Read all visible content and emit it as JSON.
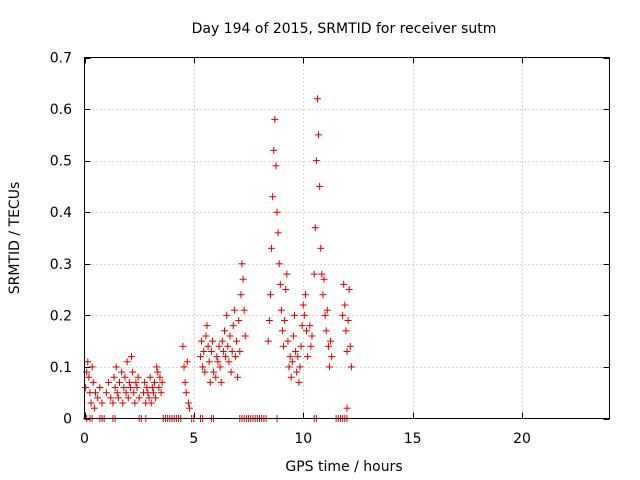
{
  "chart_data": {
    "type": "scatter",
    "title": "Day 194 of 2015, SRMTID for receiver sutm",
    "xlabel": "GPS time / hours",
    "ylabel": "SRMTID / TECUs",
    "xlim": [
      0,
      24
    ],
    "ylim": [
      0,
      0.7
    ],
    "x_ticks": [
      0,
      5,
      10,
      15,
      20
    ],
    "x_tick_labels": [
      "0",
      "5",
      "10",
      "15",
      "20"
    ],
    "y_ticks": [
      0,
      0.1,
      0.2,
      0.3,
      0.4,
      0.5,
      0.6,
      0.7
    ],
    "y_tick_labels": [
      "0",
      "0.1",
      "0.2",
      "0.3",
      "0.4",
      "0.5",
      "0.6",
      "0.7"
    ],
    "grid": true,
    "marker": "plus",
    "color": "#dd0000",
    "series": [
      {
        "name": "SRMTID",
        "points": [
          [
            0.05,
            0.06
          ],
          [
            0.1,
            0.09
          ],
          [
            0.15,
            0.11
          ],
          [
            0.2,
            0.08
          ],
          [
            0.25,
            0.05
          ],
          [
            0.3,
            0.03
          ],
          [
            0.35,
            0.1
          ],
          [
            0.4,
            0.07
          ],
          [
            0.45,
            0.02
          ],
          [
            0.5,
            0.05
          ],
          [
            0.6,
            0.04
          ],
          [
            0.7,
            0.06
          ],
          [
            0.8,
            0.03
          ],
          [
            1.0,
            0.05
          ],
          [
            1.1,
            0.07
          ],
          [
            1.2,
            0.04
          ],
          [
            1.3,
            0.03
          ],
          [
            1.35,
            0.08
          ],
          [
            1.4,
            0.06
          ],
          [
            1.45,
            0.1
          ],
          [
            1.5,
            0.05
          ],
          [
            1.55,
            0.04
          ],
          [
            1.6,
            0.07
          ],
          [
            1.7,
            0.09
          ],
          [
            1.75,
            0.03
          ],
          [
            1.8,
            0.06
          ],
          [
            1.85,
            0.08
          ],
          [
            1.9,
            0.05
          ],
          [
            1.95,
            0.11
          ],
          [
            2.0,
            0.04
          ],
          [
            2.05,
            0.07
          ],
          [
            2.1,
            0.06
          ],
          [
            2.15,
            0.12
          ],
          [
            2.2,
            0.09
          ],
          [
            2.25,
            0.05
          ],
          [
            2.3,
            0.03
          ],
          [
            2.35,
            0.07
          ],
          [
            2.4,
            0.06
          ],
          [
            2.45,
            0.08
          ],
          [
            2.5,
            0.04
          ],
          [
            2.7,
            0.05
          ],
          [
            2.75,
            0.07
          ],
          [
            2.8,
            0.03
          ],
          [
            2.85,
            0.06
          ],
          [
            2.9,
            0.05
          ],
          [
            2.95,
            0.04
          ],
          [
            3.0,
            0.08
          ],
          [
            3.05,
            0.03
          ],
          [
            3.1,
            0.06
          ],
          [
            3.15,
            0.05
          ],
          [
            3.2,
            0.07
          ],
          [
            3.25,
            0.04
          ],
          [
            3.3,
            0.1
          ],
          [
            3.35,
            0.09
          ],
          [
            3.4,
            0.06
          ],
          [
            3.45,
            0.08
          ],
          [
            3.5,
            0.05
          ],
          [
            3.55,
            0.07
          ],
          [
            4.5,
            0.14
          ],
          [
            4.55,
            0.1
          ],
          [
            4.6,
            0.07
          ],
          [
            4.65,
            0.05
          ],
          [
            4.7,
            0.11
          ],
          [
            4.75,
            0.03
          ],
          [
            4.8,
            0.02
          ],
          [
            5.3,
            0.12
          ],
          [
            5.35,
            0.15
          ],
          [
            5.4,
            0.1
          ],
          [
            5.45,
            0.13
          ],
          [
            5.5,
            0.09
          ],
          [
            5.55,
            0.16
          ],
          [
            5.6,
            0.18
          ],
          [
            5.65,
            0.14
          ],
          [
            5.7,
            0.11
          ],
          [
            5.75,
            0.07
          ],
          [
            5.8,
            0.13
          ],
          [
            5.85,
            0.15
          ],
          [
            5.9,
            0.09
          ],
          [
            6.0,
            0.08
          ],
          [
            6.05,
            0.12
          ],
          [
            6.1,
            0.11
          ],
          [
            6.15,
            0.14
          ],
          [
            6.2,
            0.1
          ],
          [
            6.25,
            0.07
          ],
          [
            6.3,
            0.15
          ],
          [
            6.35,
            0.13
          ],
          [
            6.4,
            0.17
          ],
          [
            6.45,
            0.12
          ],
          [
            6.5,
            0.2
          ],
          [
            6.55,
            0.14
          ],
          [
            6.6,
            0.11
          ],
          [
            6.65,
            0.16
          ],
          [
            6.7,
            0.09
          ],
          [
            6.75,
            0.13
          ],
          [
            6.8,
            0.18
          ],
          [
            6.85,
            0.21
          ],
          [
            6.9,
            0.12
          ],
          [
            6.95,
            0.15
          ],
          [
            7.0,
            0.08
          ],
          [
            7.05,
            0.19
          ],
          [
            7.1,
            0.13
          ],
          [
            7.15,
            0.24
          ],
          [
            7.2,
            0.3
          ],
          [
            7.25,
            0.27
          ],
          [
            7.3,
            0.21
          ],
          [
            7.35,
            0.16
          ],
          [
            8.4,
            0.15
          ],
          [
            8.45,
            0.19
          ],
          [
            8.5,
            0.24
          ],
          [
            8.55,
            0.33
          ],
          [
            8.6,
            0.43
          ],
          [
            8.65,
            0.52
          ],
          [
            8.7,
            0.58
          ],
          [
            8.75,
            0.49
          ],
          [
            8.8,
            0.4
          ],
          [
            8.85,
            0.36
          ],
          [
            8.9,
            0.3
          ],
          [
            8.95,
            0.26
          ],
          [
            9.0,
            0.21
          ],
          [
            9.05,
            0.17
          ],
          [
            9.1,
            0.14
          ],
          [
            9.15,
            0.19
          ],
          [
            9.2,
            0.25
          ],
          [
            9.25,
            0.28
          ],
          [
            9.3,
            0.15
          ],
          [
            9.35,
            0.1
          ],
          [
            9.4,
            0.12
          ],
          [
            9.45,
            0.08
          ],
          [
            9.5,
            0.11
          ],
          [
            9.55,
            0.16
          ],
          [
            9.6,
            0.2
          ],
          [
            9.65,
            0.13
          ],
          [
            9.7,
            0.09
          ],
          [
            9.75,
            0.12
          ],
          [
            9.8,
            0.07
          ],
          [
            9.85,
            0.1
          ],
          [
            9.9,
            0.14
          ],
          [
            9.95,
            0.18
          ],
          [
            10.0,
            0.22
          ],
          [
            10.05,
            0.2
          ],
          [
            10.1,
            0.24
          ],
          [
            10.15,
            0.17
          ],
          [
            10.2,
            0.12
          ],
          [
            10.3,
            0.18
          ],
          [
            10.35,
            0.14
          ],
          [
            10.4,
            0.16
          ],
          [
            10.5,
            0.28
          ],
          [
            10.55,
            0.37
          ],
          [
            10.6,
            0.5
          ],
          [
            10.65,
            0.62
          ],
          [
            10.7,
            0.55
          ],
          [
            10.75,
            0.45
          ],
          [
            10.8,
            0.33
          ],
          [
            10.85,
            0.28
          ],
          [
            10.9,
            0.24
          ],
          [
            10.95,
            0.27
          ],
          [
            11.0,
            0.2
          ],
          [
            11.05,
            0.17
          ],
          [
            11.1,
            0.21
          ],
          [
            11.15,
            0.14
          ],
          [
            11.2,
            0.1
          ],
          [
            11.25,
            0.15
          ],
          [
            11.3,
            0.12
          ],
          [
            11.8,
            0.2
          ],
          [
            11.85,
            0.26
          ],
          [
            11.9,
            0.22
          ],
          [
            11.95,
            0.17
          ],
          [
            12.0,
            0.13
          ],
          [
            12.05,
            0.19
          ],
          [
            12.1,
            0.25
          ],
          [
            12.15,
            0.14
          ],
          [
            12.2,
            0.1
          ],
          [
            12.0,
            0.02
          ],
          [
            0.1,
            0.0
          ],
          [
            0.25,
            0.0
          ],
          [
            0.35,
            0.0
          ],
          [
            0.7,
            0.0
          ],
          [
            0.8,
            0.0
          ],
          [
            0.9,
            0.0
          ],
          [
            1.3,
            0.0
          ],
          [
            1.4,
            0.0
          ],
          [
            2.5,
            0.0
          ],
          [
            2.6,
            0.0
          ],
          [
            2.8,
            0.0
          ],
          [
            3.6,
            0.0
          ],
          [
            3.7,
            0.0
          ],
          [
            3.8,
            0.0
          ],
          [
            3.9,
            0.0
          ],
          [
            4.0,
            0.0
          ],
          [
            4.1,
            0.0
          ],
          [
            4.2,
            0.0
          ],
          [
            4.3,
            0.0
          ],
          [
            4.4,
            0.0
          ],
          [
            4.9,
            0.0
          ],
          [
            5.0,
            0.0
          ],
          [
            5.3,
            0.0
          ],
          [
            5.4,
            0.0
          ],
          [
            5.8,
            0.0
          ],
          [
            5.9,
            0.0
          ],
          [
            7.1,
            0.0
          ],
          [
            7.2,
            0.0
          ],
          [
            7.3,
            0.0
          ],
          [
            7.4,
            0.0
          ],
          [
            7.5,
            0.0
          ],
          [
            7.6,
            0.0
          ],
          [
            7.7,
            0.0
          ],
          [
            7.8,
            0.0
          ],
          [
            7.9,
            0.0
          ],
          [
            8.0,
            0.0
          ],
          [
            8.1,
            0.0
          ],
          [
            8.2,
            0.0
          ],
          [
            8.3,
            0.0
          ],
          [
            8.8,
            0.0
          ],
          [
            10.5,
            0.0
          ],
          [
            10.6,
            0.0
          ],
          [
            11.5,
            0.0
          ],
          [
            11.6,
            0.0
          ],
          [
            11.7,
            0.0
          ],
          [
            11.8,
            0.0
          ],
          [
            11.9,
            0.0
          ],
          [
            12.0,
            0.0
          ]
        ]
      }
    ]
  }
}
